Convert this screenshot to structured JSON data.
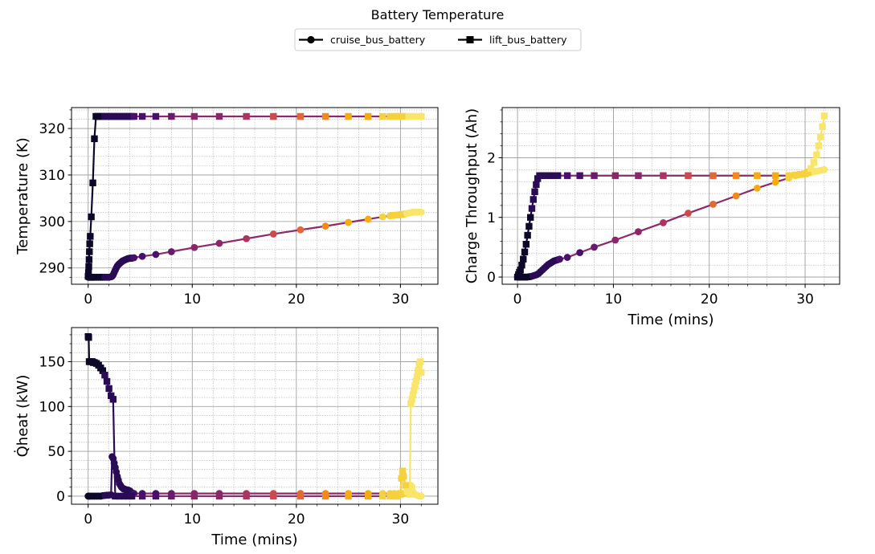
{
  "figure": {
    "title": "Battery Temperature",
    "legend": [
      {
        "label": "cruise_bus_battery",
        "marker": "circle"
      },
      {
        "label": "lift_bus_battery",
        "marker": "square"
      }
    ],
    "legend_placement": "top-center"
  },
  "chart_data": [
    {
      "type": "line",
      "panel": "top-left",
      "xlabel": "",
      "ylabel": "Temperature (K)",
      "xlim": [
        -1.6,
        33.6
      ],
      "ylim": [
        286.5,
        324.5
      ],
      "xticks": [
        0,
        10,
        20,
        30
      ],
      "yticks": [
        290,
        300,
        310,
        320
      ],
      "grid": true,
      "series": [
        {
          "name": "cruise_bus_battery",
          "marker": "circle",
          "x": [
            0,
            0.1,
            0.2,
            0.3,
            0.4,
            0.5,
            0.6,
            0.8,
            1.0,
            1.2,
            1.4,
            1.6,
            1.8,
            2.0,
            2.2,
            2.3,
            2.4,
            2.5,
            2.6,
            2.7,
            2.8,
            2.9,
            3.0,
            3.1,
            3.2,
            3.3,
            3.4,
            3.5,
            3.6,
            3.7,
            3.8,
            3.9,
            4.0,
            4.1,
            4.2,
            4.4,
            5.2,
            6.5,
            8.0,
            10.2,
            12.6,
            15.2,
            17.8,
            20.4,
            22.8,
            25.0,
            26.9,
            28.3,
            29.0,
            29.2,
            29.4,
            29.6,
            29.8,
            30.0,
            30.2,
            30.4,
            30.6,
            30.8,
            31.0,
            31.2,
            31.4,
            31.6,
            31.8,
            32.0
          ],
          "y": [
            288,
            288,
            288,
            288,
            288,
            288,
            288,
            288,
            288,
            288,
            288,
            288,
            288,
            288,
            288.1,
            288.2,
            288.5,
            289,
            289.5,
            290,
            290.4,
            290.7,
            290.9,
            291.1,
            291.3,
            291.5,
            291.6,
            291.7,
            291.8,
            291.9,
            292,
            292.05,
            292.1,
            292.1,
            292.1,
            292.2,
            292.5,
            292.9,
            293.5,
            294.4,
            295.3,
            296.3,
            297.3,
            298.2,
            299.0,
            299.8,
            300.5,
            301,
            301.2,
            301.3,
            301.3,
            301.4,
            301.4,
            301.5,
            301.5,
            301.6,
            301.7,
            301.8,
            301.9,
            302,
            302,
            302,
            302,
            302
          ]
        },
        {
          "name": "lift_bus_battery",
          "marker": "square",
          "x": [
            0,
            0.03,
            0.06,
            0.09,
            0.12,
            0.15,
            0.2,
            0.3,
            0.45,
            0.6,
            0.75,
            0.9,
            1.0,
            1.2,
            1.4,
            1.6,
            1.8,
            2.0,
            2.2,
            2.4,
            2.6,
            2.8,
            3.0,
            3.2,
            3.4,
            3.6,
            3.8,
            4.0,
            4.2,
            4.4,
            5.2,
            6.5,
            8.0,
            10.2,
            12.6,
            15.2,
            17.8,
            20.4,
            22.8,
            25.0,
            26.9,
            28.3,
            29.0,
            29.3,
            29.6,
            29.9,
            30.2,
            30.5,
            30.8,
            31.1,
            31.4,
            31.7,
            32.0
          ],
          "y": [
            288.2,
            289,
            290.3,
            291.8,
            293.5,
            295.2,
            296.8,
            301.0,
            308.3,
            317.8,
            322.6,
            322.6,
            322.6,
            322.6,
            322.6,
            322.6,
            322.6,
            322.6,
            322.6,
            322.6,
            322.6,
            322.6,
            322.6,
            322.6,
            322.6,
            322.6,
            322.6,
            322.6,
            322.6,
            322.6,
            322.6,
            322.6,
            322.6,
            322.6,
            322.6,
            322.6,
            322.6,
            322.6,
            322.6,
            322.6,
            322.6,
            322.6,
            322.6,
            322.6,
            322.6,
            322.6,
            322.6,
            322.6,
            322.6,
            322.6,
            322.6,
            322.6,
            322.6
          ]
        }
      ]
    },
    {
      "type": "line",
      "panel": "top-right",
      "xlabel": "Time (mins)",
      "ylabel": "Charge Throughput (Ah)",
      "xlim": [
        -1.6,
        33.6
      ],
      "ylim": [
        -0.12,
        2.84
      ],
      "xticks": [
        0,
        10,
        20,
        30
      ],
      "yticks": [
        0,
        1,
        2
      ],
      "grid": true,
      "series": [
        {
          "name": "cruise_bus_battery",
          "marker": "circle",
          "x": [
            0,
            0.1,
            0.2,
            0.4,
            0.6,
            0.8,
            1.0,
            1.2,
            1.4,
            1.6,
            1.8,
            2.0,
            2.2,
            2.4,
            2.6,
            2.8,
            3.0,
            3.2,
            3.4,
            3.6,
            3.8,
            4.0,
            4.2,
            4.4,
            5.2,
            6.5,
            8.0,
            10.2,
            12.6,
            15.2,
            17.8,
            20.4,
            22.8,
            25.0,
            26.9,
            28.3,
            29.0,
            29.3,
            29.6,
            29.9,
            30.2,
            30.5,
            30.8,
            31.1,
            31.4,
            31.7,
            32.0
          ],
          "y": [
            0,
            0,
            0,
            0,
            0,
            0,
            0,
            0.005,
            0.01,
            0.02,
            0.03,
            0.04,
            0.06,
            0.09,
            0.12,
            0.15,
            0.18,
            0.21,
            0.23,
            0.25,
            0.27,
            0.28,
            0.29,
            0.3,
            0.33,
            0.41,
            0.5,
            0.62,
            0.76,
            0.91,
            1.07,
            1.22,
            1.36,
            1.49,
            1.59,
            1.66,
            1.7,
            1.71,
            1.72,
            1.73,
            1.74,
            1.75,
            1.76,
            1.77,
            1.78,
            1.79,
            1.8
          ]
        },
        {
          "name": "lift_bus_battery",
          "marker": "square",
          "x": [
            0,
            0.1,
            0.2,
            0.3,
            0.45,
            0.6,
            0.75,
            0.9,
            1.05,
            1.2,
            1.35,
            1.5,
            1.65,
            1.8,
            1.95,
            2.1,
            2.3,
            2.6,
            3.0,
            3.4,
            3.8,
            4.2,
            5.2,
            6.5,
            8.0,
            10.2,
            12.6,
            15.2,
            17.8,
            20.4,
            22.8,
            25.0,
            26.9,
            28.3,
            29.0,
            29.5,
            30.0,
            30.3,
            30.6,
            30.9,
            31.2,
            31.4,
            31.6,
            31.8,
            32.0
          ],
          "y": [
            0,
            0.04,
            0.08,
            0.12,
            0.2,
            0.3,
            0.42,
            0.55,
            0.7,
            0.85,
            1.0,
            1.15,
            1.3,
            1.43,
            1.55,
            1.65,
            1.7,
            1.7,
            1.7,
            1.7,
            1.7,
            1.7,
            1.7,
            1.7,
            1.7,
            1.7,
            1.7,
            1.7,
            1.7,
            1.7,
            1.7,
            1.7,
            1.7,
            1.7,
            1.71,
            1.72,
            1.73,
            1.76,
            1.82,
            1.92,
            2.05,
            2.2,
            2.35,
            2.52,
            2.7
          ]
        }
      ]
    },
    {
      "type": "line",
      "panel": "bottom-left",
      "xlabel": "Time (mins)",
      "ylabel": "Q̇heat (kW)",
      "xlim": [
        -1.6,
        33.6
      ],
      "ylim": [
        -9,
        188
      ],
      "xticks": [
        0,
        10,
        20,
        30
      ],
      "yticks": [
        0,
        50,
        100,
        150
      ],
      "grid": true,
      "series": [
        {
          "name": "cruise_bus_battery",
          "marker": "circle",
          "x": [
            0,
            0.1,
            0.2,
            0.4,
            0.6,
            0.8,
            1.0,
            1.2,
            1.4,
            1.6,
            1.8,
            2.0,
            2.2,
            2.3,
            2.4,
            2.5,
            2.6,
            2.7,
            2.8,
            2.9,
            3.0,
            3.1,
            3.2,
            3.3,
            3.4,
            3.5,
            3.6,
            3.8,
            4.0,
            4.2,
            4.4,
            5.2,
            6.5,
            8.0,
            10.2,
            12.6,
            15.2,
            17.8,
            20.4,
            22.8,
            25.0,
            26.9,
            28.3,
            29.0,
            29.4,
            29.8,
            30.2,
            30.4,
            30.6,
            30.8,
            31.0,
            31.1,
            31.2,
            31.4,
            31.6,
            31.8,
            32.0
          ],
          "y": [
            0,
            0,
            0,
            0,
            0,
            0,
            0,
            0,
            0.5,
            0.8,
            1.0,
            1.2,
            1.5,
            44,
            42,
            37,
            32,
            27,
            22,
            18,
            14,
            12,
            10,
            9,
            8,
            8,
            7,
            7,
            6,
            4,
            3,
            3,
            3,
            3,
            3,
            3,
            3,
            3,
            3,
            3,
            3,
            3,
            3,
            3,
            3,
            3,
            3,
            3,
            5,
            8,
            12,
            10,
            5,
            2,
            1,
            0,
            0
          ]
        },
        {
          "name": "lift_bus_battery",
          "marker": "square",
          "x": [
            0,
            0.05,
            0.1,
            0.2,
            0.3,
            0.4,
            0.5,
            0.6,
            0.8,
            1.0,
            1.2,
            1.4,
            1.6,
            1.8,
            2.0,
            2.2,
            2.4,
            2.6,
            3.0,
            3.4,
            3.8,
            4.2,
            5.2,
            6.5,
            8.0,
            10.2,
            12.6,
            15.2,
            17.8,
            20.4,
            22.8,
            25.0,
            26.9,
            28.3,
            29.0,
            29.4,
            29.7,
            30.0,
            30.1,
            30.2,
            30.3,
            30.5,
            30.7,
            30.9,
            31.0,
            31.1,
            31.2,
            31.3,
            31.4,
            31.5,
            31.6,
            31.7,
            31.8,
            31.9,
            32.0
          ],
          "y": [
            178,
            177,
            150,
            150,
            150,
            150,
            149,
            149,
            148,
            146,
            143,
            140,
            135,
            128,
            120,
            112,
            108,
            0,
            0,
            0,
            0,
            0,
            0,
            0,
            0,
            0,
            0,
            0,
            0,
            0,
            0,
            0,
            0,
            0,
            0,
            0,
            0,
            2,
            20,
            28,
            22,
            12,
            5,
            2,
            103,
            108,
            113,
            118,
            123,
            128,
            133,
            140,
            146,
            150,
            138
          ]
        }
      ]
    }
  ]
}
